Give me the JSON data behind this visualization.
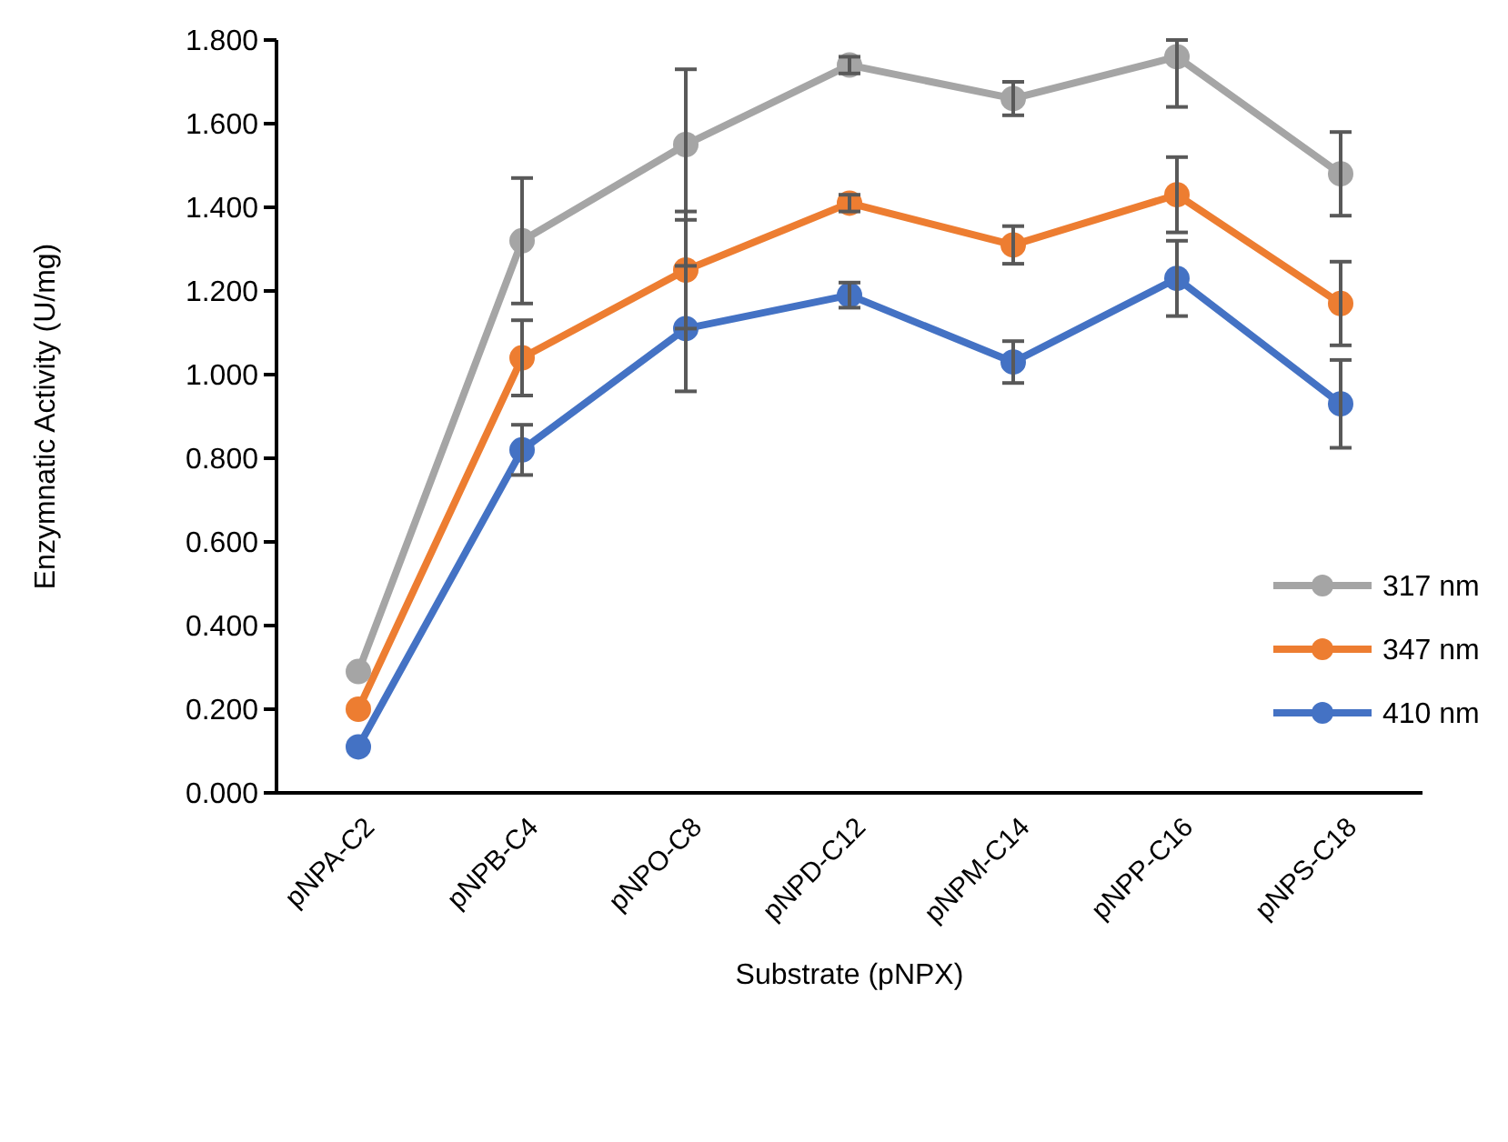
{
  "chart_data": {
    "type": "line",
    "xlabel": "Substrate (pNPX)",
    "ylabel": "Enzymnatic Activity (U/mg)",
    "categories": [
      "pNPA-C2",
      "pNPB-C4",
      "pNPO-C8",
      "pNPD-C12",
      "pNPM-C14",
      "pNPP-C16",
      "pNPS-C18"
    ],
    "ylim": [
      0,
      1.8
    ],
    "yticks": [
      {
        "value": 0,
        "label": "0.000"
      },
      {
        "value": 0.2,
        "label": "0.200"
      },
      {
        "value": 0.4,
        "label": "0.400"
      },
      {
        "value": 0.6,
        "label": "0.600"
      },
      {
        "value": 0.8,
        "label": "0.800"
      },
      {
        "value": 1,
        "label": "1.000"
      },
      {
        "value": 1.2,
        "label": "1.200"
      },
      {
        "value": 1.4,
        "label": "1.400"
      },
      {
        "value": 1.6,
        "label": "1.600"
      },
      {
        "value": 1.8,
        "label": "1.800"
      }
    ],
    "grid": false,
    "legend": "right",
    "marker": "circle",
    "line_style": "solid",
    "series": [
      {
        "name": "317 nm",
        "color": "#a5a5a5",
        "values": [
          0.29,
          1.32,
          1.55,
          1.74,
          1.66,
          1.76,
          1.48
        ],
        "errors": [
          null,
          0.15,
          0.18,
          0.02,
          0.04,
          [
            1.64,
            1.8
          ],
          0.1
        ]
      },
      {
        "name": "347 nm",
        "color": "#ed7d31",
        "values": [
          0.2,
          1.04,
          1.25,
          1.41,
          1.31,
          1.43,
          1.17
        ],
        "errors": [
          null,
          0.09,
          0.14,
          0.02,
          0.045,
          0.09,
          0.1
        ]
      },
      {
        "name": "410 nm",
        "color": "#4472c4",
        "values": [
          0.11,
          0.82,
          1.11,
          1.19,
          1.03,
          1.23,
          0.93
        ],
        "errors": [
          null,
          0.06,
          0.15,
          0.03,
          0.05,
          0.09,
          0.105
        ]
      }
    ]
  }
}
